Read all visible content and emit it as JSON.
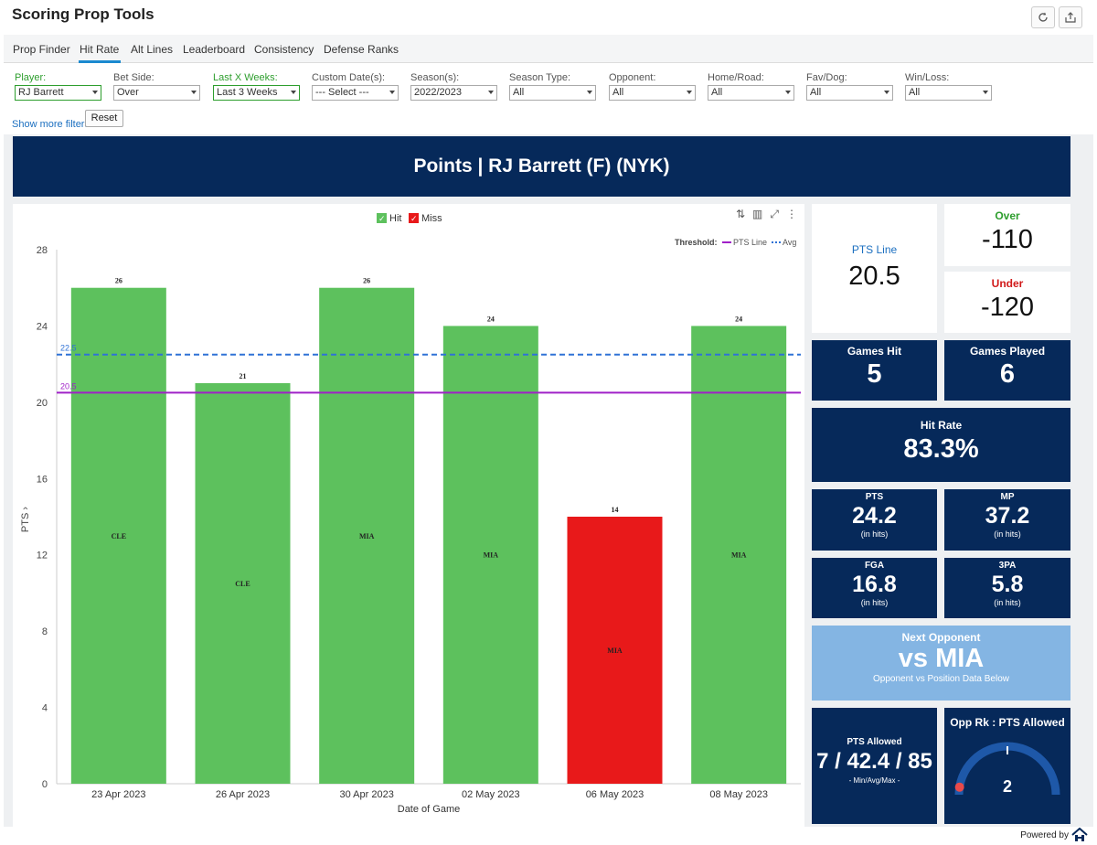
{
  "app": {
    "title": "Scoring Prop Tools"
  },
  "tabs": [
    "Prop Finder",
    "Hit Rate",
    "Alt Lines",
    "Leaderboard",
    "Consistency",
    "Defense Ranks"
  ],
  "filters": [
    {
      "label": "Player:",
      "value": "RJ Barrett",
      "highlight": true
    },
    {
      "label": "Bet Side:",
      "value": "Over",
      "highlight": false
    },
    {
      "label": "Last X Weeks:",
      "value": "Last 3 Weeks",
      "highlight": true
    },
    {
      "label": "Custom Date(s):",
      "value": "--- Select ---",
      "highlight": false
    },
    {
      "label": "Season(s):",
      "value": "2022/2023",
      "highlight": false
    },
    {
      "label": "Season Type:",
      "value": "All",
      "highlight": false
    },
    {
      "label": "Opponent:",
      "value": "All",
      "highlight": false
    },
    {
      "label": "Home/Road:",
      "value": "All",
      "highlight": false
    },
    {
      "label": "Fav/Dog:",
      "value": "All",
      "highlight": false
    },
    {
      "label": "Win/Loss:",
      "value": "All",
      "highlight": false
    }
  ],
  "filters_extra": {
    "more_link": "Show more filters",
    "reset": "Reset"
  },
  "banner": {
    "title": "Points | RJ Barrett (F) (NYK)"
  },
  "chart_data": {
    "type": "bar",
    "categories": [
      "23 Apr 2023",
      "26 Apr 2023",
      "30 Apr 2023",
      "02 May 2023",
      "06 May 2023",
      "08 May 2023"
    ],
    "values": [
      26,
      21,
      26,
      24,
      14,
      24
    ],
    "opponents": [
      "CLE",
      "CLE",
      "MIA",
      "MIA",
      "MIA",
      "MIA"
    ],
    "results": [
      "Hit",
      "Hit",
      "Hit",
      "Hit",
      "Miss",
      "Hit"
    ],
    "legend": [
      {
        "name": "Hit",
        "color": "#5dc15d"
      },
      {
        "name": "Miss",
        "color": "#e8191a"
      }
    ],
    "threshold_label": "Threshold:",
    "lines": [
      {
        "name": "PTS Line",
        "value": 20.5,
        "label": "20.5",
        "color": "#a020c8",
        "style": "solid"
      },
      {
        "name": "Avg",
        "value": 22.5,
        "label": "22.5",
        "color": "#2f72d6",
        "style": "dotted"
      }
    ],
    "xlabel": "Date of Game",
    "ylabel": "PTS",
    "yticks": [
      0,
      4,
      8,
      12,
      16,
      20,
      24,
      28
    ],
    "ylim": [
      0,
      28
    ],
    "legend_position": "top-center",
    "grid": false
  },
  "stats": {
    "pts_line": {
      "title": "PTS Line",
      "value": "20.5"
    },
    "over": {
      "title": "Over",
      "value": "-110",
      "color": "#2e9e2e"
    },
    "under": {
      "title": "Under",
      "value": "-120",
      "color": "#d11a1a"
    },
    "games_hit": {
      "title": "Games Hit",
      "value": "5"
    },
    "games_played": {
      "title": "Games Played",
      "value": "6"
    },
    "hit_rate": {
      "title": "Hit Rate",
      "value": "83.3%"
    },
    "pts": {
      "title": "PTS",
      "value": "24.2",
      "sub": "(in hits)"
    },
    "mp": {
      "title": "MP",
      "value": "37.2",
      "sub": "(in hits)"
    },
    "fga": {
      "title": "FGA",
      "value": "16.8",
      "sub": "(in hits)"
    },
    "tpa": {
      "title": "3PA",
      "value": "5.8",
      "sub": "(in hits)"
    },
    "next_opponent": {
      "title": "Next Opponent",
      "value": "vs MIA",
      "sub": "Opponent vs Position Data Below"
    },
    "pts_allowed": {
      "title": "PTS Allowed",
      "value": "7 / 42.4 / 85",
      "sub": "- Min/Avg/Max -"
    },
    "opp_rank": {
      "title": "Opp Rk : PTS Allowed",
      "value": "2",
      "gauge_fraction": 0.05
    }
  },
  "footer": {
    "powered": "Powered by"
  }
}
